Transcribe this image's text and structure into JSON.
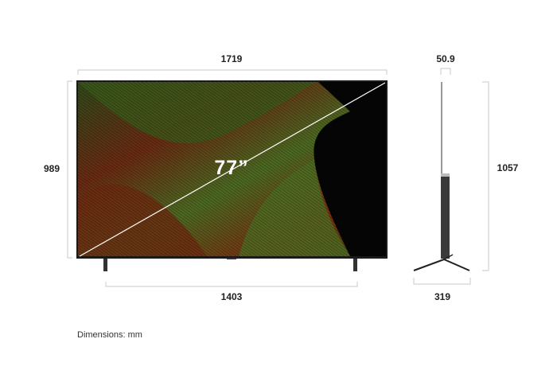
{
  "dimensions": {
    "total_width": "1719",
    "screen_height": "989",
    "stand_width": "1403",
    "depth_panel": "50.9",
    "total_height": "1057",
    "stand_depth": "319"
  },
  "screen_size": "77”",
  "unit_note": "Dimensions: mm",
  "colors": {
    "line": "#c8c8c8",
    "frame": "#1a1a1a",
    "green": "#4a6a1e",
    "red": "#7a2a10"
  }
}
